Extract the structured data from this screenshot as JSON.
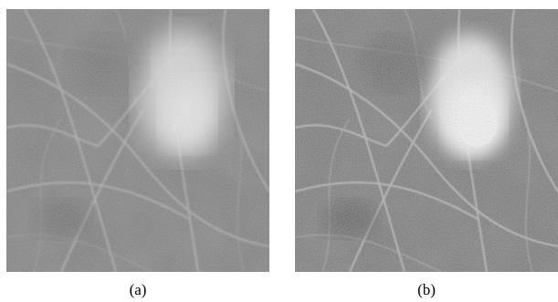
{
  "figure": {
    "panels": [
      {
        "id": "a",
        "caption": "(a)"
      },
      {
        "id": "b",
        "caption": "(b)"
      }
    ]
  }
}
